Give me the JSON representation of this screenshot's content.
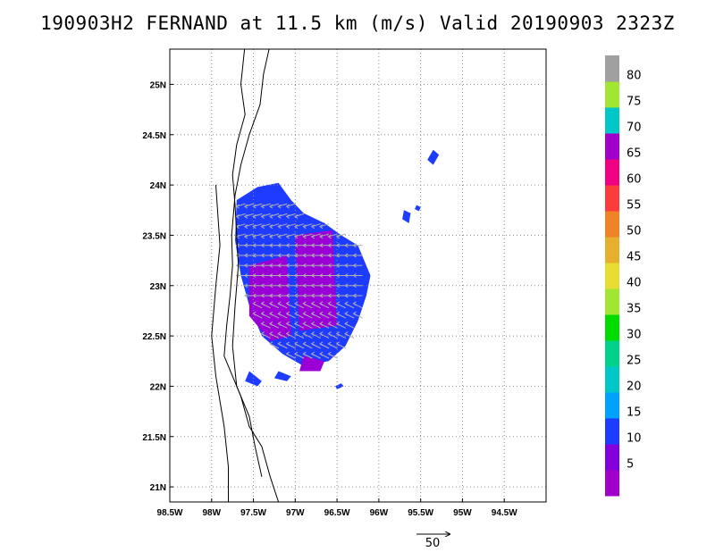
{
  "title": "190903H2 FERNAND at 11.5 km (m/s) Valid 20190903 2323Z",
  "map": {
    "lon_range": [
      -98.5,
      -94.0
    ],
    "lat_range": [
      20.85,
      25.35
    ],
    "x_ticks": [
      {
        "value": -98.5,
        "label": "98.5W"
      },
      {
        "value": -98.0,
        "label": "98W"
      },
      {
        "value": -97.5,
        "label": "97.5W"
      },
      {
        "value": -97.0,
        "label": "97W"
      },
      {
        "value": -96.5,
        "label": "96.5W"
      },
      {
        "value": -96.0,
        "label": "96W"
      },
      {
        "value": -95.5,
        "label": "95.5W"
      },
      {
        "value": -95.0,
        "label": "95W"
      },
      {
        "value": -94.5,
        "label": "94.5W"
      }
    ],
    "y_ticks": [
      {
        "value": 21.0,
        "label": "21N"
      },
      {
        "value": 21.5,
        "label": "21.5N"
      },
      {
        "value": 22.0,
        "label": "22N"
      },
      {
        "value": 22.5,
        "label": "22.5N"
      },
      {
        "value": 23.0,
        "label": "23N"
      },
      {
        "value": 23.5,
        "label": "23.5N"
      },
      {
        "value": 24.0,
        "label": "24N"
      },
      {
        "value": 24.5,
        "label": "24.5N"
      },
      {
        "value": 25.0,
        "label": "25N"
      }
    ],
    "grid": "dotted"
  },
  "colorbar": {
    "levels": [
      {
        "label": "",
        "color": "#a000c8"
      },
      {
        "label": "5",
        "color": "#8200dc"
      },
      {
        "label": "10",
        "color": "#1e3cff"
      },
      {
        "label": "15",
        "color": "#00a0ff"
      },
      {
        "label": "20",
        "color": "#00c8c8"
      },
      {
        "label": "25",
        "color": "#00d28c"
      },
      {
        "label": "30",
        "color": "#00dc00"
      },
      {
        "label": "35",
        "color": "#a0e632"
      },
      {
        "label": "40",
        "color": "#e6dc32"
      },
      {
        "label": "45",
        "color": "#e6af2d"
      },
      {
        "label": "50",
        "color": "#f08228"
      },
      {
        "label": "55",
        "color": "#fa3c3c"
      },
      {
        "label": "60",
        "color": "#f00082"
      },
      {
        "label": "65",
        "color": "#a000c8"
      },
      {
        "label": "70",
        "color": "#00c8c8"
      },
      {
        "label": "75",
        "color": "#a0e632"
      },
      {
        "label": "80",
        "color": "#a0a0a0"
      }
    ]
  },
  "scale_vector": {
    "label": "50"
  }
}
